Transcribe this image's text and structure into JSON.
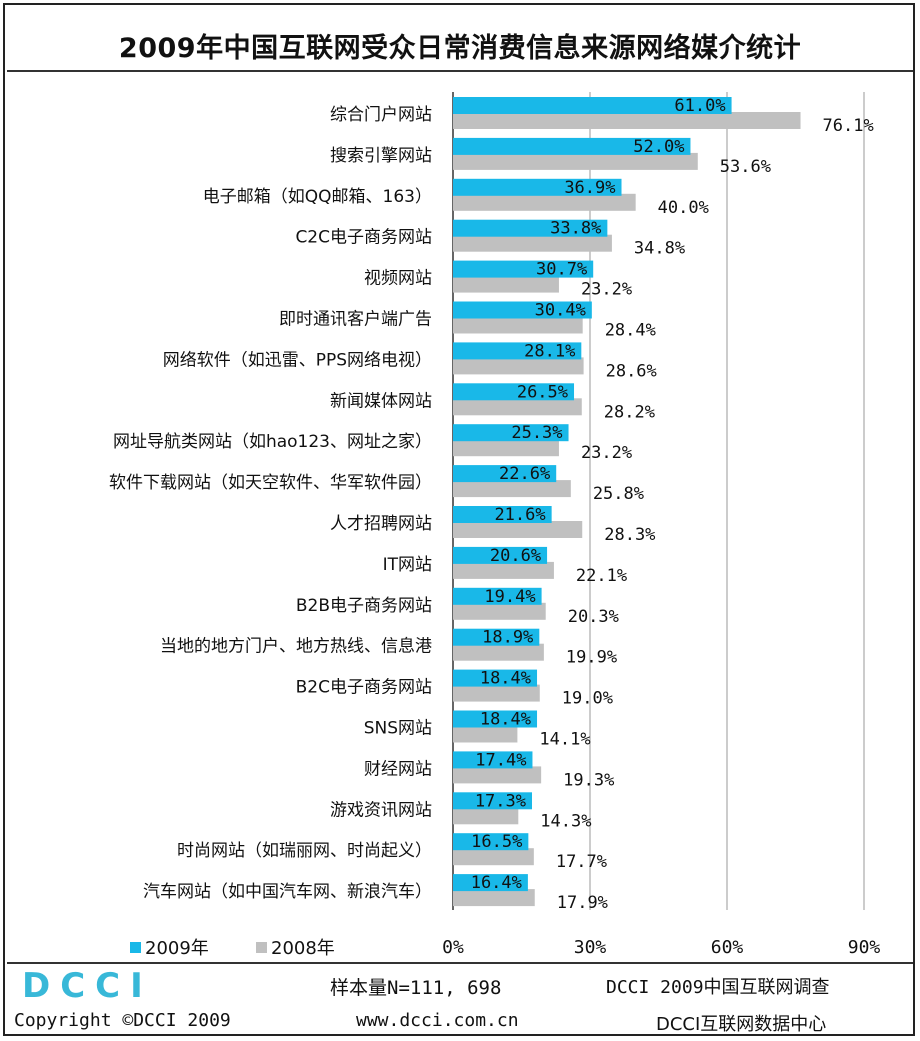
{
  "chart_data": {
    "type": "bar",
    "orientation": "horizontal",
    "title": "2009年中国互联网受众日常消费信息来源网络媒介统计",
    "categories": [
      "综合门户网站",
      "搜索引擎网站",
      "电子邮箱（如QQ邮箱、163）",
      "C2C电子商务网站",
      "视频网站",
      "即时通讯客户端广告",
      "网络软件（如迅雷、PPS网络电视）",
      "新闻媒体网站",
      "网址导航类网站（如hao123、网址之家）",
      "软件下载网站（如天空软件、华军软件园）",
      "人才招聘网站",
      "IT网站",
      "B2B电子商务网站",
      "当地的地方门户、地方热线、信息港",
      "B2C电子商务网站",
      "SNS网站",
      "财经网站",
      "游戏资讯网站",
      "时尚网站（如瑞丽网、时尚起义）",
      "汽车网站（如中国汽车网、新浪汽车）"
    ],
    "series": [
      {
        "name": "2009年",
        "color": "#19b8e8",
        "values": [
          61.0,
          52.0,
          36.9,
          33.8,
          30.7,
          30.4,
          28.1,
          26.5,
          25.3,
          22.6,
          21.6,
          20.6,
          19.4,
          18.9,
          18.4,
          18.4,
          17.4,
          17.3,
          16.5,
          16.4
        ],
        "labels": [
          "61.0%",
          "52.0%",
          "36.9%",
          "33.8%",
          "30.7%",
          "30.4%",
          "28.1%",
          "26.5%",
          "25.3%",
          "22.6%",
          "21.6%",
          "20.6%",
          "19.4%",
          "18.9%",
          "18.4%",
          "18.4%",
          "17.4%",
          "17.3%",
          "16.5%",
          "16.4%"
        ]
      },
      {
        "name": "2008年",
        "color": "#c0c0c0",
        "values": [
          76.1,
          53.6,
          40.0,
          34.8,
          23.2,
          28.4,
          28.6,
          28.2,
          23.2,
          25.8,
          28.3,
          22.1,
          20.3,
          19.9,
          19.0,
          14.1,
          19.3,
          14.3,
          17.7,
          17.9
        ],
        "labels": [
          "76.1%",
          "53.6%",
          "40.0%",
          "34.8%",
          "23.2%",
          "28.4%",
          "28.6%",
          "28.2%",
          "23.2%",
          "25.8%",
          "28.3%",
          "22.1%",
          "20.3%",
          "19.9%",
          "19.0%",
          "14.1%",
          "19.3%",
          "14.3%",
          "17.7%",
          "17.9%"
        ]
      }
    ],
    "xlim": [
      0,
      90
    ],
    "xticks": [
      "0%",
      "30%",
      "60%",
      "90%"
    ],
    "xtick_values": [
      0,
      30,
      60,
      90
    ],
    "legend": [
      "2009年",
      "2008年"
    ],
    "legend_position": "bottom-left",
    "grid": true
  },
  "footer": {
    "logo_text": "DCCI",
    "sample": "样本量N=111, 698",
    "survey": "DCCI 2009中国互联网调查",
    "copyright": "Copyright ©DCCI 2009",
    "website": "www.dcci.com.cn",
    "center": "DCCI互联网数据中心"
  },
  "colors": {
    "accent": "#19b8e8",
    "secondary": "#c0c0c0",
    "logo": "#38b8d8"
  }
}
